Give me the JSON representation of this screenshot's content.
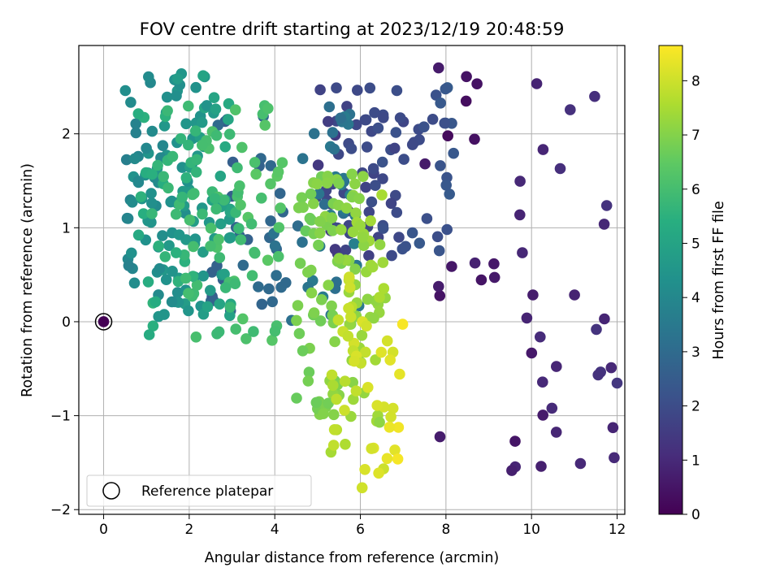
{
  "colors": {
    "viridis": [
      "#440154",
      "#472d7b",
      "#3b528b",
      "#2c728e",
      "#21918c",
      "#28ae80",
      "#5ec962",
      "#addc30",
      "#fde725"
    ],
    "grid": "#b0b0b0",
    "axes": "#000000"
  },
  "chart_data": {
    "type": "scatter",
    "title": "FOV centre drift starting at 2023/12/19 20:48:59",
    "xlabel": "Angular distance from reference (arcmin)",
    "ylabel": "Rotation from reference (arcmin)",
    "xlim": [
      -0.58,
      12.18
    ],
    "ylim": [
      -2.05,
      2.94
    ],
    "xticks": [
      0,
      2,
      4,
      6,
      8,
      10,
      12
    ],
    "yticks": [
      -2,
      -1,
      0,
      1,
      2
    ],
    "xtick_labels": [
      "0",
      "2",
      "4",
      "6",
      "8",
      "10",
      "12"
    ],
    "ytick_labels": [
      "−2",
      "−1",
      "0",
      "1",
      "2"
    ],
    "grid": true,
    "legend": {
      "position": "lower-left",
      "label": "Reference platepar"
    },
    "colorbar": {
      "label": "Hours from first FF file",
      "min": 0,
      "max": 8.65,
      "ticks": [
        0,
        1,
        2,
        3,
        4,
        5,
        6,
        7,
        8
      ],
      "tick_labels": [
        "0",
        "1",
        "2",
        "3",
        "4",
        "5",
        "6",
        "7",
        "8"
      ],
      "colormap": "viridis"
    },
    "reference_point": {
      "x": 0,
      "y": 0
    },
    "clusters": [
      {
        "x": [
          7.5,
          12.0
        ],
        "y": [
          -1.6,
          2.8
        ],
        "h": [
          0.1,
          1.4
        ],
        "n": 48
      },
      {
        "x": [
          4.9,
          8.2
        ],
        "y": [
          0.7,
          2.5
        ],
        "h": [
          1.3,
          2.6
        ],
        "n": 90
      },
      {
        "x": [
          2.5,
          6.0
        ],
        "y": [
          0.0,
          2.3
        ],
        "h": [
          2.4,
          3.8
        ],
        "n": 70
      },
      {
        "x": [
          0.5,
          3.0
        ],
        "y": [
          0.05,
          2.65
        ],
        "h": [
          3.6,
          5.3
        ],
        "n": 130
      },
      {
        "x": [
          0.8,
          4.2
        ],
        "y": [
          -0.2,
          2.3
        ],
        "h": [
          5.2,
          6.6
        ],
        "n": 110
      },
      {
        "x": [
          4.5,
          6.6
        ],
        "y": [
          -1.1,
          1.6
        ],
        "h": [
          6.5,
          7.6
        ],
        "n": 120
      },
      {
        "x": [
          5.2,
          7.0
        ],
        "y": [
          -1.85,
          0.5
        ],
        "h": [
          7.4,
          8.6
        ],
        "n": 50
      }
    ]
  }
}
